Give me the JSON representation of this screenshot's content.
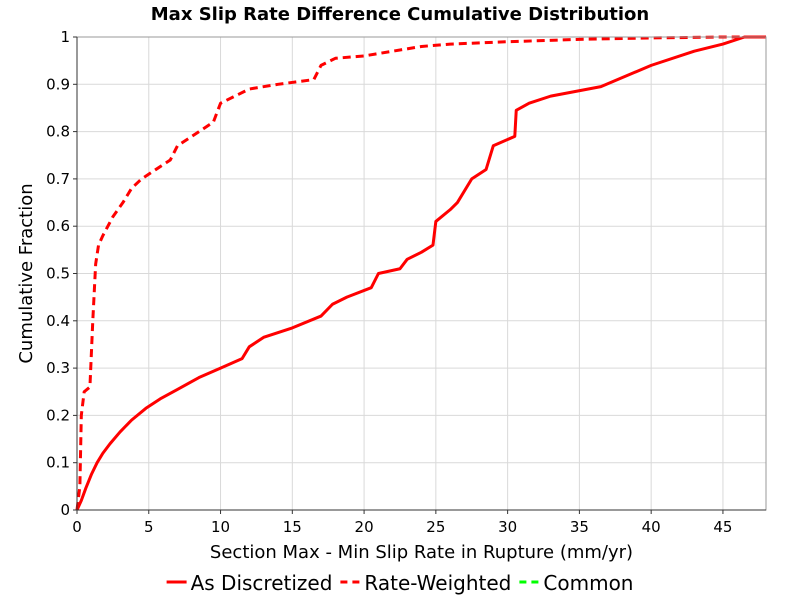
{
  "chart_data": {
    "type": "line",
    "title": "Max Slip Rate Difference Cumulative Distribution",
    "xlabel": "Section Max - Min Slip Rate in Rupture (mm/yr)",
    "ylabel": "Cumulative Fraction",
    "xlim": [
      0,
      48
    ],
    "ylim": [
      0,
      1
    ],
    "x_ticks": [
      0,
      5,
      10,
      15,
      20,
      25,
      30,
      35,
      40,
      45
    ],
    "x_tick_labels": [
      "0",
      "5",
      "10",
      "15",
      "20",
      "25",
      "30",
      "35",
      "40",
      "45"
    ],
    "y_ticks": [
      0,
      0.1,
      0.2,
      0.3,
      0.4,
      0.5,
      0.6,
      0.7,
      0.8,
      0.9,
      1
    ],
    "y_tick_labels": [
      "0",
      "0.1",
      "0.2",
      "0.3",
      "0.4",
      "0.5",
      "0.6",
      "0.7",
      "0.8",
      "0.9",
      "1"
    ],
    "grid": true,
    "legend_position": "bottom",
    "series": [
      {
        "name": "As Discretized",
        "color": "#ff0000",
        "dash": "solid",
        "x": [
          0,
          0.3,
          0.6,
          1.0,
          1.4,
          1.8,
          2.3,
          3.0,
          3.8,
          4.8,
          5.8,
          7.0,
          8.5,
          10.0,
          11.5,
          12.0,
          13.0,
          15.0,
          17.0,
          17.8,
          18.8,
          20.5,
          21.0,
          22.5,
          23.0,
          24.0,
          24.8,
          25.0,
          26.0,
          26.5,
          27.5,
          28.5,
          29.0,
          30.5,
          30.6,
          31.5,
          33.0,
          36.5,
          40.0,
          43.0,
          45.0,
          46.5,
          48.0
        ],
        "y": [
          0,
          0.02,
          0.045,
          0.075,
          0.1,
          0.12,
          0.14,
          0.165,
          0.19,
          0.215,
          0.235,
          0.255,
          0.28,
          0.3,
          0.32,
          0.345,
          0.365,
          0.385,
          0.41,
          0.435,
          0.45,
          0.47,
          0.5,
          0.51,
          0.53,
          0.545,
          0.56,
          0.61,
          0.635,
          0.65,
          0.7,
          0.72,
          0.77,
          0.79,
          0.845,
          0.86,
          0.875,
          0.895,
          0.94,
          0.97,
          0.985,
          1.0,
          1.0
        ]
      },
      {
        "name": "Rate-Weighted",
        "color": "#ff0000",
        "dash": "dashed",
        "x": [
          0,
          0.2,
          0.3,
          0.5,
          0.9,
          1.1,
          1.3,
          1.5,
          1.8,
          2.5,
          3.2,
          3.8,
          4.5,
          5.5,
          6.5,
          7.0,
          8.5,
          9.5,
          10.0,
          11.0,
          12.0,
          14.0,
          16.5,
          17.0,
          18.0,
          20.0,
          22.0,
          24.0,
          26.0,
          30.0,
          35.0,
          40.0,
          45.0,
          48.0
        ],
        "y": [
          0,
          0.05,
          0.2,
          0.25,
          0.26,
          0.4,
          0.52,
          0.56,
          0.58,
          0.62,
          0.65,
          0.68,
          0.7,
          0.72,
          0.74,
          0.77,
          0.8,
          0.82,
          0.86,
          0.875,
          0.89,
          0.9,
          0.91,
          0.94,
          0.955,
          0.96,
          0.97,
          0.98,
          0.985,
          0.99,
          0.995,
          0.998,
          1.0,
          1.0
        ]
      },
      {
        "name": "Common",
        "color": "#00ff00",
        "dash": "dashed",
        "x": [],
        "y": []
      }
    ]
  }
}
